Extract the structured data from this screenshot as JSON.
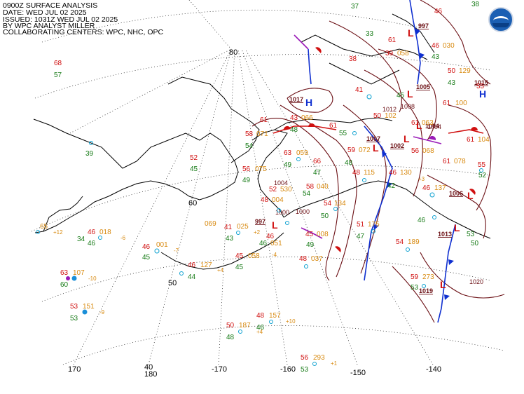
{
  "header": {
    "line1": "0900Z SURFACE ANALYSIS",
    "line2": "DATE: WED JUL 02 2025",
    "line3": "ISSUED: 1031Z WED JUL 02 2025",
    "line4": "BY WPC ANALYST MILLER",
    "line5": "COLLABORATING CENTERS: WPC, NHC, OPC"
  },
  "logo": {
    "name": "noaa-logo"
  },
  "grid_labels": {
    "lat80": "80",
    "lat60": "60",
    "lat50": "50",
    "lat40": "40",
    "lon170": "170",
    "lon180": "180",
    "lonm170": "-170",
    "lonm160": "-160",
    "lonm150": "-150",
    "lonm140": "-140"
  },
  "pressure_centers": [
    {
      "type": "H",
      "value": "1017",
      "color": "#1030d0"
    },
    {
      "type": "H",
      "value": "1015",
      "color": "#1030d0"
    },
    {
      "type": "L",
      "value": "1005",
      "color": "#d01010"
    },
    {
      "type": "L",
      "value": "997",
      "color": "#d01010"
    },
    {
      "type": "L",
      "value": "1007",
      "color": "#d01010"
    },
    {
      "type": "L",
      "value": "1002",
      "color": "#d01010"
    },
    {
      "type": "L",
      "value": "1004",
      "color": "#d01010"
    },
    {
      "type": "L",
      "value": "1006",
      "color": "#d01010"
    },
    {
      "type": "L",
      "value": "1013",
      "color": "#d01010"
    },
    {
      "type": "L",
      "value": "1019",
      "color": "#d01010"
    },
    {
      "type": "L",
      "value": "997",
      "color": "#d01010"
    }
  ],
  "isobar_labels": [
    "1012",
    "1008",
    "1004",
    "1000",
    "1004",
    "1020",
    "1000"
  ],
  "stations": [
    {
      "t": "68",
      "d": "57"
    },
    {
      "t": "39"
    },
    {
      "t": "65"
    },
    {
      "t": "34",
      "p": "+12"
    },
    {
      "t": "46",
      "d": "46",
      "p": "018"
    },
    {
      "t": "-6"
    },
    {
      "t": "46",
      "d": "45",
      "p": "001"
    },
    {
      "t": "-7"
    },
    {
      "t": "63",
      "d": "60",
      "p": "107"
    },
    {
      "t": "-10"
    },
    {
      "t": "53",
      "d": "53",
      "p": "151"
    },
    {
      "t": "-9"
    },
    {
      "t": "46",
      "d": "44",
      "p": "127"
    },
    {
      "t": "+4"
    },
    {
      "t": "069",
      "d": "43"
    },
    {
      "t": "41",
      "p": "025"
    },
    {
      "t": "+2"
    },
    {
      "t": "45",
      "d": "45",
      "p": "058"
    },
    {
      "t": "-4"
    },
    {
      "t": "46",
      "d": "46",
      "p": "051"
    },
    {
      "t": "48",
      "d": "46",
      "p": "157"
    },
    {
      "t": "+10"
    },
    {
      "t": "50",
      "d": "48",
      "p": "187"
    },
    {
      "t": "+4"
    },
    {
      "t": "56",
      "d": "53",
      "p": "293"
    },
    {
      "t": "+1"
    },
    {
      "t": "52",
      "d": "45"
    },
    {
      "t": "61",
      "d": "54"
    },
    {
      "t": "58",
      "p": "071"
    },
    {
      "t": "63",
      "d": "49",
      "p": "059"
    },
    {
      "t": "66"
    },
    {
      "t": "56",
      "d": "49",
      "p": "075"
    },
    {
      "t": "52",
      "p": "530"
    },
    {
      "t": "48",
      "p": "004"
    },
    {
      "t": "58",
      "p": "040"
    },
    {
      "t": "54",
      "p": "134"
    },
    {
      "t": "50"
    },
    {
      "t": "48",
      "p": "037"
    },
    {
      "t": "45",
      "p": "008"
    },
    {
      "t": "51",
      "d": "47",
      "p": "175"
    },
    {
      "t": "54",
      "p": "189"
    },
    {
      "t": "59",
      "d": "53",
      "p": "273"
    },
    {
      "t": "48",
      "p": "115"
    },
    {
      "t": "46",
      "p": "130"
    },
    {
      "t": "+3"
    },
    {
      "t": "46",
      "p": "137"
    },
    {
      "t": "42"
    },
    {
      "t": "59",
      "p": "072"
    },
    {
      "t": "50",
      "p": "102"
    },
    {
      "t": "61",
      "p": "063"
    },
    {
      "t": "56",
      "p": "068"
    },
    {
      "t": "61",
      "p": "078"
    },
    {
      "t": "61",
      "p": "104"
    },
    {
      "t": "55"
    },
    {
      "t": "52"
    },
    {
      "t": "50",
      "p": "129"
    },
    {
      "t": "43"
    },
    {
      "t": "61",
      "p": "100"
    },
    {
      "t": "46",
      "p": "030"
    },
    {
      "t": "43"
    },
    {
      "t": "39",
      "p": "058"
    },
    {
      "t": "46"
    },
    {
      "t": "41"
    },
    {
      "t": "45"
    },
    {
      "t": "43",
      "p": "066"
    },
    {
      "t": "48"
    },
    {
      "t": "55"
    },
    {
      "t": "61"
    },
    {
      "t": "47"
    },
    {
      "t": "50"
    },
    {
      "t": "38"
    },
    {
      "t": "46"
    },
    {
      "t": "48"
    },
    {
      "t": "61"
    },
    {
      "t": "55"
    },
    {
      "t": "54"
    },
    {
      "t": "53"
    },
    {
      "t": "37"
    },
    {
      "t": "33"
    },
    {
      "t": "38"
    },
    {
      "t": "49"
    }
  ]
}
